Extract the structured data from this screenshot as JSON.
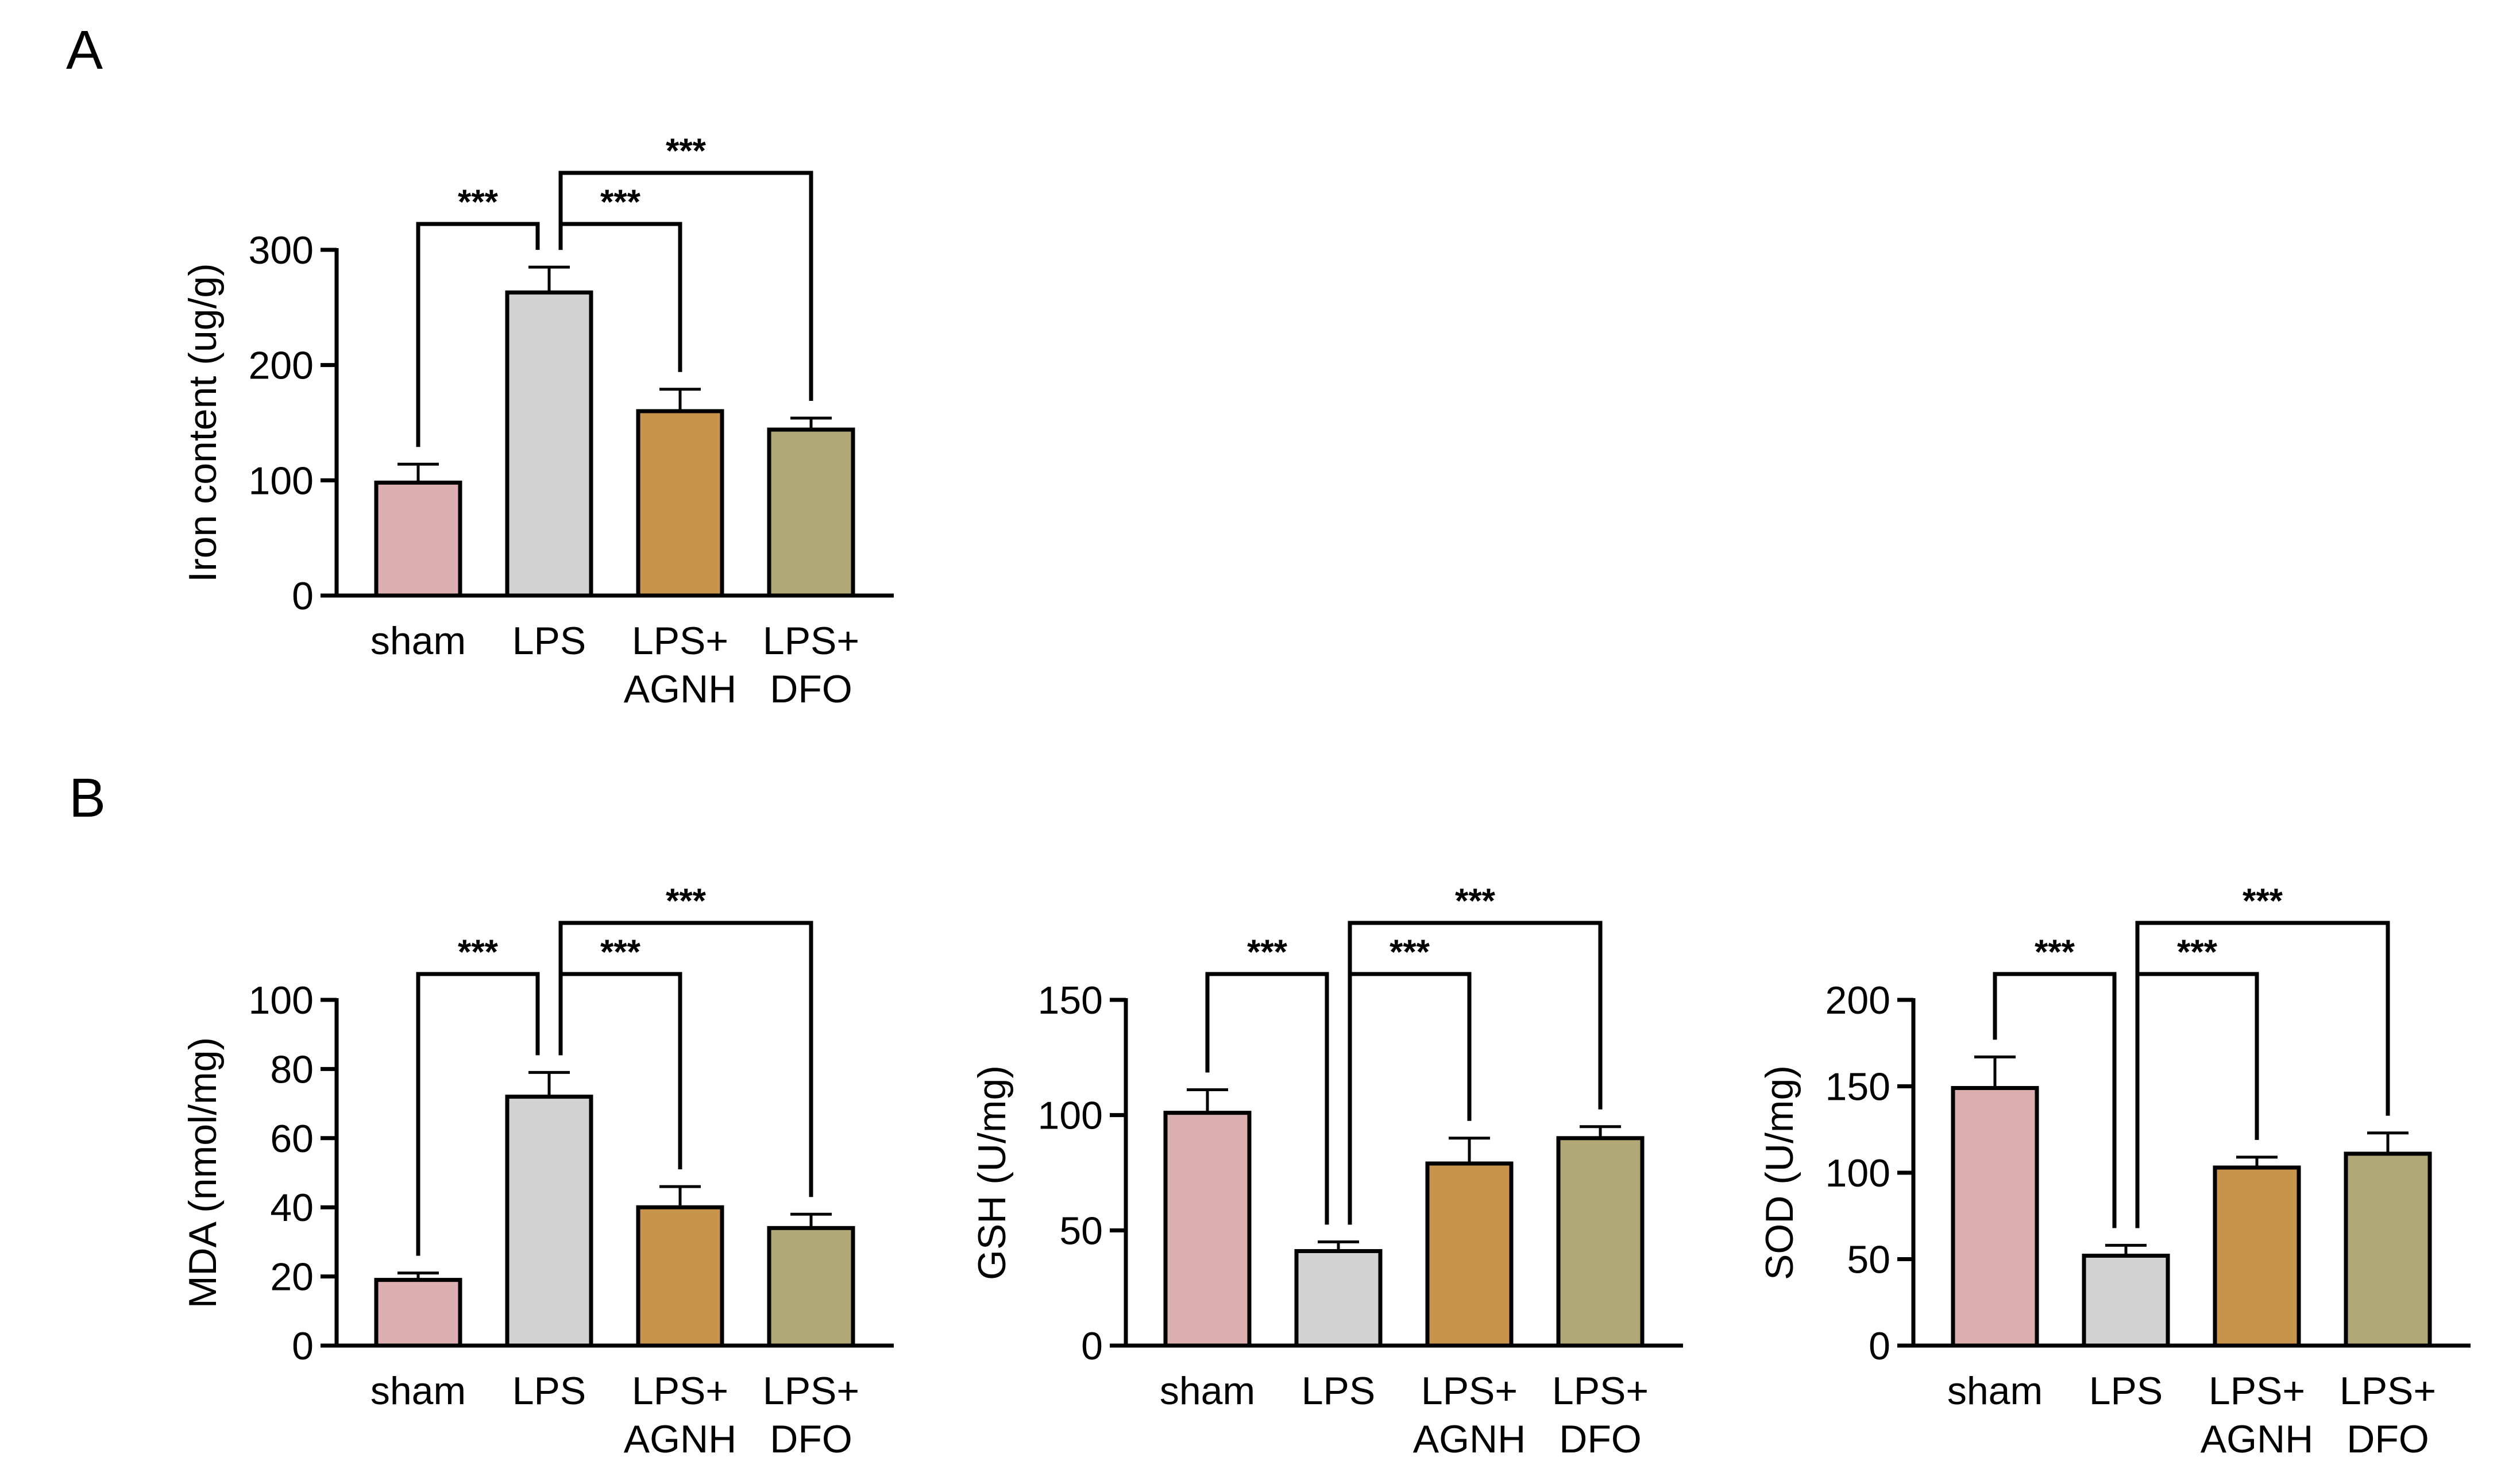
{
  "panel_labels": [
    "A",
    "B"
  ],
  "colors": {
    "sham": "#dbafb0",
    "LPS": "#d3d3d3",
    "LPS+AGNH": "#c8944c",
    "LPS+DFO": "#b1a877",
    "stroke": "#000000"
  },
  "significance_label": "***",
  "chart_data": [
    {
      "type": "bar",
      "panel": "A",
      "ylabel": "Iron content (ug/g)",
      "categories": [
        [
          "sham"
        ],
        [
          "LPS"
        ],
        [
          "LPS+",
          "AGNH"
        ],
        [
          "LPS+",
          "DFO"
        ]
      ],
      "values": [
        98,
        263,
        160,
        144
      ],
      "errors": [
        16,
        22,
        19,
        10
      ],
      "ylim": [
        0,
        300
      ],
      "yticks": [
        0,
        100,
        200,
        300
      ],
      "grid": false,
      "comparisons": [
        {
          "from": 0,
          "to": 1,
          "label": "***"
        },
        {
          "from": 1,
          "to": 2,
          "label": "***"
        },
        {
          "from": 1,
          "to": 3,
          "label": "***"
        }
      ]
    },
    {
      "type": "bar",
      "panel": "B",
      "ylabel": "MDA (nmol/mg)",
      "categories": [
        [
          "sham"
        ],
        [
          "LPS"
        ],
        [
          "LPS+",
          "AGNH"
        ],
        [
          "LPS+",
          "DFO"
        ]
      ],
      "values": [
        19,
        72,
        40,
        34
      ],
      "errors": [
        2,
        7,
        6,
        4
      ],
      "ylim": [
        0,
        100
      ],
      "yticks": [
        0,
        20,
        40,
        60,
        80,
        100
      ],
      "grid": false,
      "comparisons": [
        {
          "from": 0,
          "to": 1,
          "label": "***"
        },
        {
          "from": 1,
          "to": 2,
          "label": "***"
        },
        {
          "from": 1,
          "to": 3,
          "label": "***"
        }
      ]
    },
    {
      "type": "bar",
      "panel": "B",
      "ylabel": "GSH (U/mg)",
      "categories": [
        [
          "sham"
        ],
        [
          "LPS"
        ],
        [
          "LPS+",
          "AGNH"
        ],
        [
          "LPS+",
          "DFO"
        ]
      ],
      "values": [
        101,
        41,
        79,
        90
      ],
      "errors": [
        10,
        4,
        11,
        5
      ],
      "ylim": [
        0,
        150
      ],
      "yticks": [
        0,
        50,
        100,
        150
      ],
      "grid": false,
      "comparisons": [
        {
          "from": 0,
          "to": 1,
          "label": "***"
        },
        {
          "from": 1,
          "to": 2,
          "label": "***"
        },
        {
          "from": 1,
          "to": 3,
          "label": "***"
        }
      ]
    },
    {
      "type": "bar",
      "panel": "B",
      "ylabel": "SOD (U/mg)",
      "categories": [
        [
          "sham"
        ],
        [
          "LPS"
        ],
        [
          "LPS+",
          "AGNH"
        ],
        [
          "LPS+",
          "DFO"
        ]
      ],
      "values": [
        149,
        52,
        103,
        111
      ],
      "errors": [
        18,
        6,
        6,
        12
      ],
      "ylim": [
        0,
        200
      ],
      "yticks": [
        0,
        50,
        100,
        150,
        200
      ],
      "grid": false,
      "comparisons": [
        {
          "from": 0,
          "to": 1,
          "label": "***"
        },
        {
          "from": 1,
          "to": 2,
          "label": "***"
        },
        {
          "from": 1,
          "to": 3,
          "label": "***"
        }
      ]
    }
  ]
}
